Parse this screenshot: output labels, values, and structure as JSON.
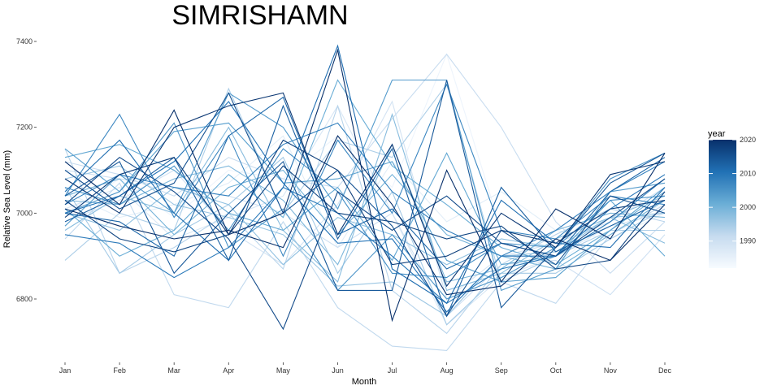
{
  "chart_data": {
    "type": "line",
    "title": "SIMRISHAMN",
    "xlabel": "Month",
    "ylabel": "Relative Sea Level (mm)",
    "categories": [
      "Jan",
      "Feb",
      "Mar",
      "Apr",
      "May",
      "Jun",
      "Jul",
      "Aug",
      "Sep",
      "Oct",
      "Nov",
      "Dec"
    ],
    "y_ticks": [
      "6800",
      "7000",
      "7200",
      "7400"
    ],
    "ylim": [
      6660,
      7420
    ],
    "grid": false,
    "legend": {
      "title": "year",
      "position": "right",
      "type": "colorbar",
      "ticks": [
        "1990",
        "2000",
        "2010",
        "2020"
      ],
      "range": [
        1982,
        2020
      ],
      "low_color": "#f7fbff",
      "high_color": "#08306b"
    },
    "series": [
      {
        "year": 1984,
        "values": [
          7000,
          7080,
          6990,
          7100,
          7080,
          7180,
          7060,
          7370,
          6960,
          6880,
          6980,
          7020
        ]
      },
      {
        "year": 1986,
        "values": [
          7050,
          6990,
          7020,
          7070,
          7180,
          6920,
          7120,
          6980,
          7050,
          6960,
          6940,
          7000
        ]
      },
      {
        "year": 1988,
        "values": [
          7010,
          7060,
          6940,
          6990,
          7040,
          7250,
          7000,
          6740,
          6850,
          6900,
          6970,
          7000
        ]
      },
      {
        "year": 1989,
        "values": [
          6980,
          7030,
          7100,
          6960,
          6880,
          7020,
          7260,
          6800,
          6900,
          6930,
          6980,
          7060
        ]
      },
      {
        "year": 1990,
        "values": [
          7100,
          7080,
          7060,
          7040,
          7000,
          6920,
          7000,
          6760,
          6880,
          6890,
          6810,
          6950
        ]
      },
      {
        "year": 1991,
        "values": [
          7120,
          7090,
          7040,
          7130,
          7080,
          7060,
          7220,
          7370,
          7200,
          6980,
          6860,
          6980
        ]
      },
      {
        "year": 1992,
        "values": [
          6940,
          7070,
          6810,
          6780,
          6980,
          6780,
          6690,
          6680,
          6840,
          6790,
          6950,
          7020
        ]
      },
      {
        "year": 1993,
        "values": [
          7150,
          6860,
          6920,
          7000,
          6870,
          7250,
          6820,
          6720,
          6880,
          6950,
          7010,
          6980
        ]
      },
      {
        "year": 1994,
        "values": [
          6890,
          7000,
          6960,
          7290,
          7000,
          7170,
          7130,
          7300,
          6840,
          6900,
          6960,
          6960
        ]
      },
      {
        "year": 1995,
        "values": [
          7060,
          6860,
          6950,
          7020,
          7130,
          6860,
          7050,
          6740,
          6860,
          6860,
          6940,
          7010
        ]
      },
      {
        "year": 1996,
        "values": [
          7080,
          7110,
          7020,
          6990,
          6950,
          6830,
          6840,
          6760,
          6900,
          6910,
          6990,
          7000
        ]
      },
      {
        "year": 1997,
        "values": [
          7000,
          6960,
          7060,
          7020,
          6880,
          6990,
          6950,
          6880,
          6940,
          6920,
          6990,
          7040
        ]
      },
      {
        "year": 1998,
        "values": [
          6960,
          7040,
          7000,
          7200,
          6960,
          6840,
          7230,
          6820,
          6860,
          6940,
          6990,
          6930
        ]
      },
      {
        "year": 1999,
        "values": [
          7030,
          7020,
          7080,
          7110,
          7030,
          6880,
          7160,
          6840,
          6870,
          6960,
          7000,
          6990
        ]
      },
      {
        "year": 2000,
        "values": [
          7040,
          7080,
          6950,
          7060,
          7100,
          6950,
          7090,
          6950,
          6900,
          6870,
          6950,
          7030
        ]
      },
      {
        "year": 2001,
        "values": [
          7010,
          6900,
          6960,
          7090,
          6990,
          7310,
          7110,
          7020,
          6920,
          6880,
          6960,
          7050
        ]
      },
      {
        "year": 2002,
        "values": [
          7130,
          7160,
          7100,
          7000,
          6960,
          7060,
          6890,
          7140,
          6880,
          6900,
          7030,
          6900
        ]
      },
      {
        "year": 2003,
        "values": [
          7150,
          7050,
          7190,
          7210,
          7070,
          7080,
          7120,
          6890,
          6840,
          6850,
          6960,
          7060
        ]
      },
      {
        "year": 2004,
        "values": [
          6970,
          7090,
          7000,
          7280,
          7200,
          7010,
          7310,
          7310,
          6820,
          6870,
          7050,
          7070
        ]
      },
      {
        "year": 2005,
        "values": [
          7000,
          7050,
          7210,
          6920,
          7010,
          6820,
          6950,
          6800,
          6850,
          6920,
          7080,
          7140
        ]
      },
      {
        "year": 2006,
        "values": [
          7060,
          7020,
          7110,
          6960,
          7150,
          7050,
          6860,
          6850,
          6930,
          6920,
          7030,
          7040
        ]
      },
      {
        "year": 2007,
        "values": [
          7040,
          7230,
          6990,
          7180,
          6900,
          7170,
          7000,
          7300,
          6960,
          6940,
          7040,
          7020
        ]
      },
      {
        "year": 2008,
        "values": [
          7020,
          7090,
          7060,
          7040,
          7160,
          7210,
          7050,
          6960,
          6900,
          6960,
          7050,
          7120
        ]
      },
      {
        "year": 2009,
        "values": [
          6950,
          6930,
          6850,
          6920,
          7060,
          7000,
          6900,
          6790,
          6870,
          6900,
          6980,
          7080
        ]
      },
      {
        "year": 2010,
        "values": [
          7000,
          7040,
          7120,
          7260,
          7070,
          6930,
          6940,
          6770,
          6900,
          6900,
          7010,
          7090
        ]
      },
      {
        "year": 2011,
        "values": [
          7050,
          7170,
          7000,
          6890,
          7060,
          7390,
          6870,
          6790,
          7030,
          6930,
          6920,
          7060
        ]
      },
      {
        "year": 2012,
        "values": [
          7000,
          6980,
          6900,
          7180,
          7270,
          6950,
          7010,
          6870,
          6930,
          6900,
          7050,
          7130
        ]
      },
      {
        "year": 2013,
        "values": [
          6980,
          7040,
          7130,
          6890,
          7250,
          6940,
          7150,
          6760,
          7060,
          6910,
          6970,
          7030
        ]
      },
      {
        "year": 2014,
        "values": [
          7040,
          7120,
          6860,
          7000,
          7120,
          6820,
          6820,
          7310,
          6780,
          6920,
          7070,
          7140
        ]
      },
      {
        "year": 2015,
        "values": [
          7100,
          7010,
          7070,
          7280,
          7000,
          7100,
          6970,
          6760,
          6960,
          6880,
          7040,
          7000
        ]
      },
      {
        "year": 2016,
        "values": [
          7020,
          7130,
          7050,
          6940,
          6730,
          7050,
          6960,
          7040,
          6930,
          6900,
          6990,
          7080
        ]
      },
      {
        "year": 2017,
        "values": [
          7030,
          6940,
          6910,
          6950,
          7110,
          7000,
          6980,
          6940,
          6970,
          6870,
          6890,
          7050
        ]
      },
      {
        "year": 2018,
        "values": [
          6990,
          7090,
          7130,
          6950,
          7170,
          7100,
          6880,
          6900,
          6960,
          6930,
          7010,
          7030
        ]
      },
      {
        "year": 2019,
        "values": [
          7080,
          7000,
          7200,
          7250,
          7280,
          6950,
          7160,
          6830,
          7000,
          6920,
          7090,
          7120
        ]
      },
      {
        "year": 2020,
        "values": [
          7120,
          7020,
          7240,
          6950,
          7000,
          7380,
          6750,
          7100,
          6840,
          7010,
          6940,
          7140
        ]
      },
      {
        "year": 2021,
        "values": [
          7010,
          6970,
          6940,
          6960,
          6920,
          7180,
          7020,
          6810,
          6830,
          6940,
          6890,
          7020
        ]
      }
    ]
  }
}
